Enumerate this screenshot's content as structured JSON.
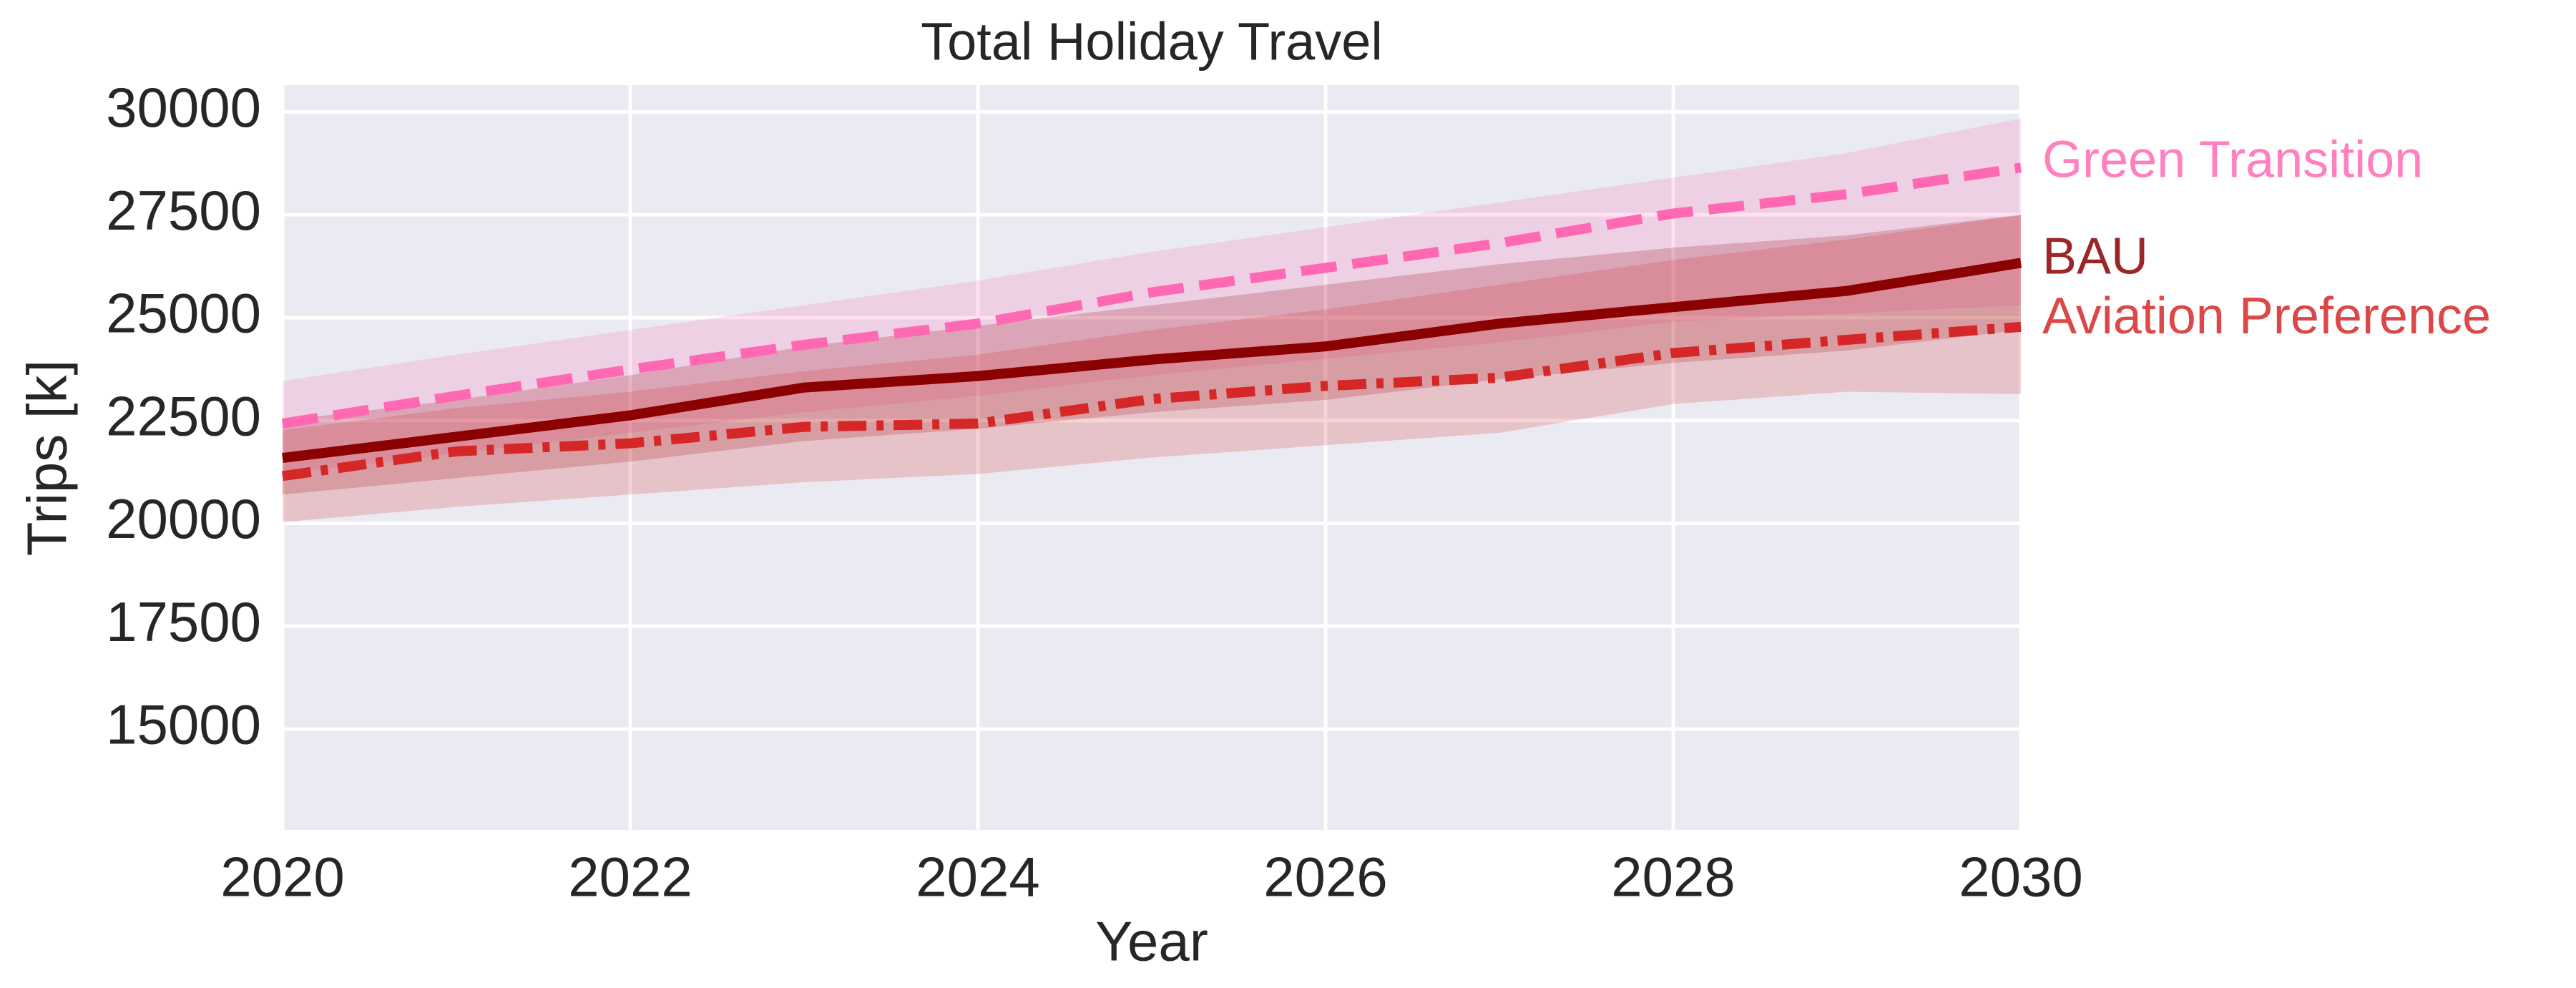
{
  "chart_data": {
    "type": "line",
    "title": "Total Holiday Travel",
    "x_label": "Year",
    "y_label": "Trips [k]",
    "x": [
      2020,
      2021,
      2022,
      2023,
      2024,
      2025,
      2026,
      2027,
      2028,
      2029,
      2030
    ],
    "xlim": [
      2020,
      2030
    ],
    "xticks": [
      2020,
      2022,
      2024,
      2026,
      2028,
      2030
    ],
    "ylim": [
      12550,
      30650
    ],
    "yticks": [
      15000,
      17500,
      20000,
      22500,
      25000,
      27500,
      30000
    ],
    "grid": true,
    "series": [
      {
        "name": "Green Transition",
        "color": "#ff69b4",
        "dash": "dashed",
        "values": [
          22425,
          23100,
          23740,
          24340,
          24855,
          25615,
          26210,
          26810,
          27530,
          28000,
          28645
        ],
        "lower": [
          21200,
          21700,
          22200,
          22700,
          23100,
          23600,
          24000,
          24400,
          24900,
          25100,
          25300
        ],
        "upper": [
          23460,
          24100,
          24700,
          25300,
          25900,
          26600,
          27200,
          27800,
          28400,
          29000,
          29840
        ]
      },
      {
        "name": "BAU",
        "color": "#8b0000",
        "dash": "solid",
        "values": [
          21590,
          22105,
          22625,
          23300,
          23580,
          23980,
          24300,
          24855,
          25255,
          25650,
          26330
        ],
        "lower": [
          20700,
          21100,
          21500,
          22000,
          22300,
          22700,
          23000,
          23500,
          23900,
          24200,
          24700
        ],
        "upper": [
          22500,
          23000,
          23600,
          24300,
          24800,
          25300,
          25800,
          26300,
          26700,
          27000,
          27500
        ]
      },
      {
        "name": "Aviation Preference",
        "color": "#d62728",
        "dash": "dashdot",
        "values": [
          21150,
          21750,
          21945,
          22345,
          22425,
          23020,
          23340,
          23540,
          24140,
          24460,
          24775
        ],
        "lower": [
          20030,
          20400,
          20700,
          21000,
          21200,
          21600,
          21900,
          22200,
          22900,
          23200,
          23140
        ],
        "upper": [
          22265,
          22800,
          23200,
          23700,
          24100,
          24700,
          25200,
          25800,
          26400,
          26900,
          27490
        ]
      }
    ]
  }
}
